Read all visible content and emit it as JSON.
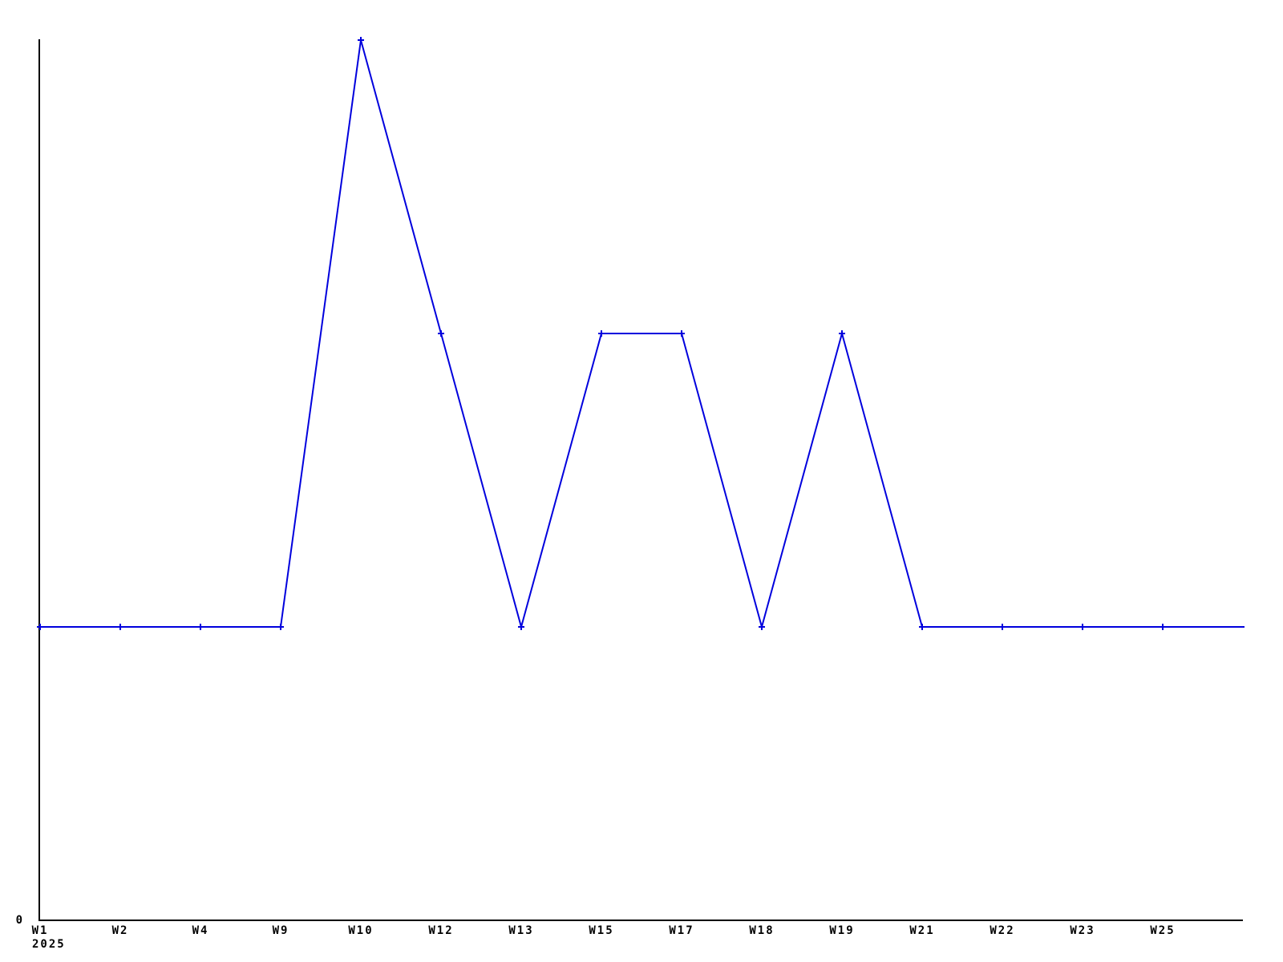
{
  "chart_data": {
    "type": "line",
    "title": "",
    "categories": [
      "W1",
      "W2",
      "W4",
      "W9",
      "W10",
      "W12",
      "W13",
      "W15",
      "W17",
      "W18",
      "W19",
      "W21",
      "W22",
      "W23",
      "W25"
    ],
    "values": [
      1,
      1,
      1,
      1,
      3,
      2,
      1,
      2,
      2,
      1,
      2,
      1,
      1,
      1,
      1
    ],
    "trailing_segment": {
      "value": 1,
      "has_marker": false,
      "label": ""
    },
    "year_label": "2025",
    "xlabel": "",
    "ylabel": "",
    "x_axis": {
      "tick_labels_shown": true,
      "tick_marks_shown": false
    },
    "y_axis": {
      "zero_label": "0",
      "min": 0,
      "max": 3,
      "tick_labels": [
        "0"
      ]
    },
    "ylim": [
      0,
      3
    ],
    "grid": false,
    "legend": false,
    "marker": "plus",
    "line_color": "#0000dd",
    "axis_color": "#000000",
    "label_color": "#000000",
    "background": "#ffffff"
  }
}
